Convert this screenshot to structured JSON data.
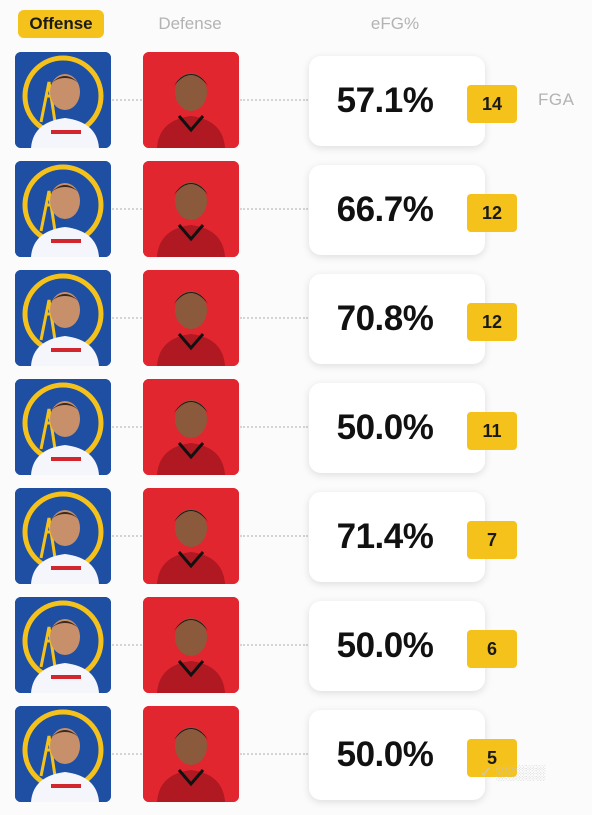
{
  "tabs": {
    "offense": "Offense",
    "defense": "Defense",
    "efg": "eFG%"
  },
  "fga_label": "FGA",
  "colors": {
    "accent": "#f5c21b",
    "offense_bg": "#1e4fa3",
    "defense_bg": "#e2262f"
  },
  "matchups": [
    {
      "efg": "57.1%",
      "fga": "14"
    },
    {
      "efg": "66.7%",
      "fga": "12"
    },
    {
      "efg": "70.8%",
      "fga": "12"
    },
    {
      "efg": "50.0%",
      "fga": "11"
    },
    {
      "efg": "71.4%",
      "fga": "7"
    },
    {
      "efg": "50.0%",
      "fga": "6"
    },
    {
      "efg": "50.0%",
      "fga": "5"
    }
  ]
}
